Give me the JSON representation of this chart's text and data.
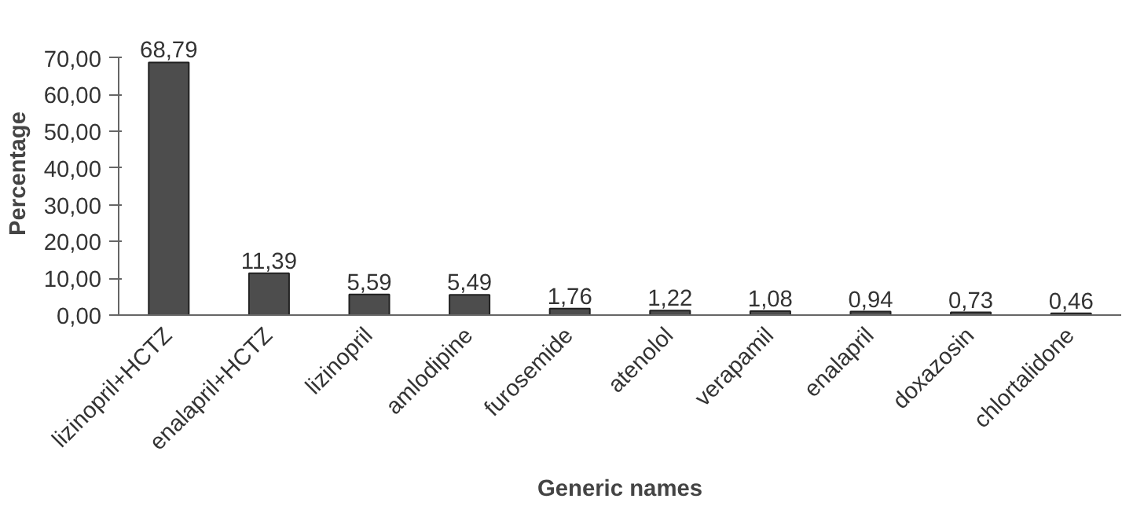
{
  "chart_data": {
    "type": "bar",
    "xlabel": "Generic names",
    "ylabel": "Percentage",
    "categories": [
      "lizinopril+HCTZ",
      "enalapril+HCTZ",
      "lizinopril",
      "amlodipine",
      "furosemide",
      "atenolol",
      "verapamil",
      "enalapril",
      "doxazosin",
      "chlortalidone"
    ],
    "values": [
      68.79,
      11.39,
      5.59,
      5.49,
      1.76,
      1.22,
      1.08,
      0.94,
      0.73,
      0.46
    ],
    "value_labels": [
      "68,79",
      "11,39",
      "5,59",
      "5,49",
      "1,76",
      "1,22",
      "1,08",
      "0,94",
      "0,73",
      "0,46"
    ],
    "color": "#4d4d4d",
    "ylim": [
      0,
      70
    ],
    "yticks": [
      {
        "value": 0,
        "label": "0,00"
      },
      {
        "value": 10,
        "label": "10,00"
      },
      {
        "value": 20,
        "label": "20,00"
      },
      {
        "value": 30,
        "label": "30,00"
      },
      {
        "value": 40,
        "label": "40,00"
      },
      {
        "value": 50,
        "label": "50,00"
      },
      {
        "value": 60,
        "label": "60,00"
      },
      {
        "value": 70,
        "label": "70,00"
      }
    ],
    "grid": false
  }
}
